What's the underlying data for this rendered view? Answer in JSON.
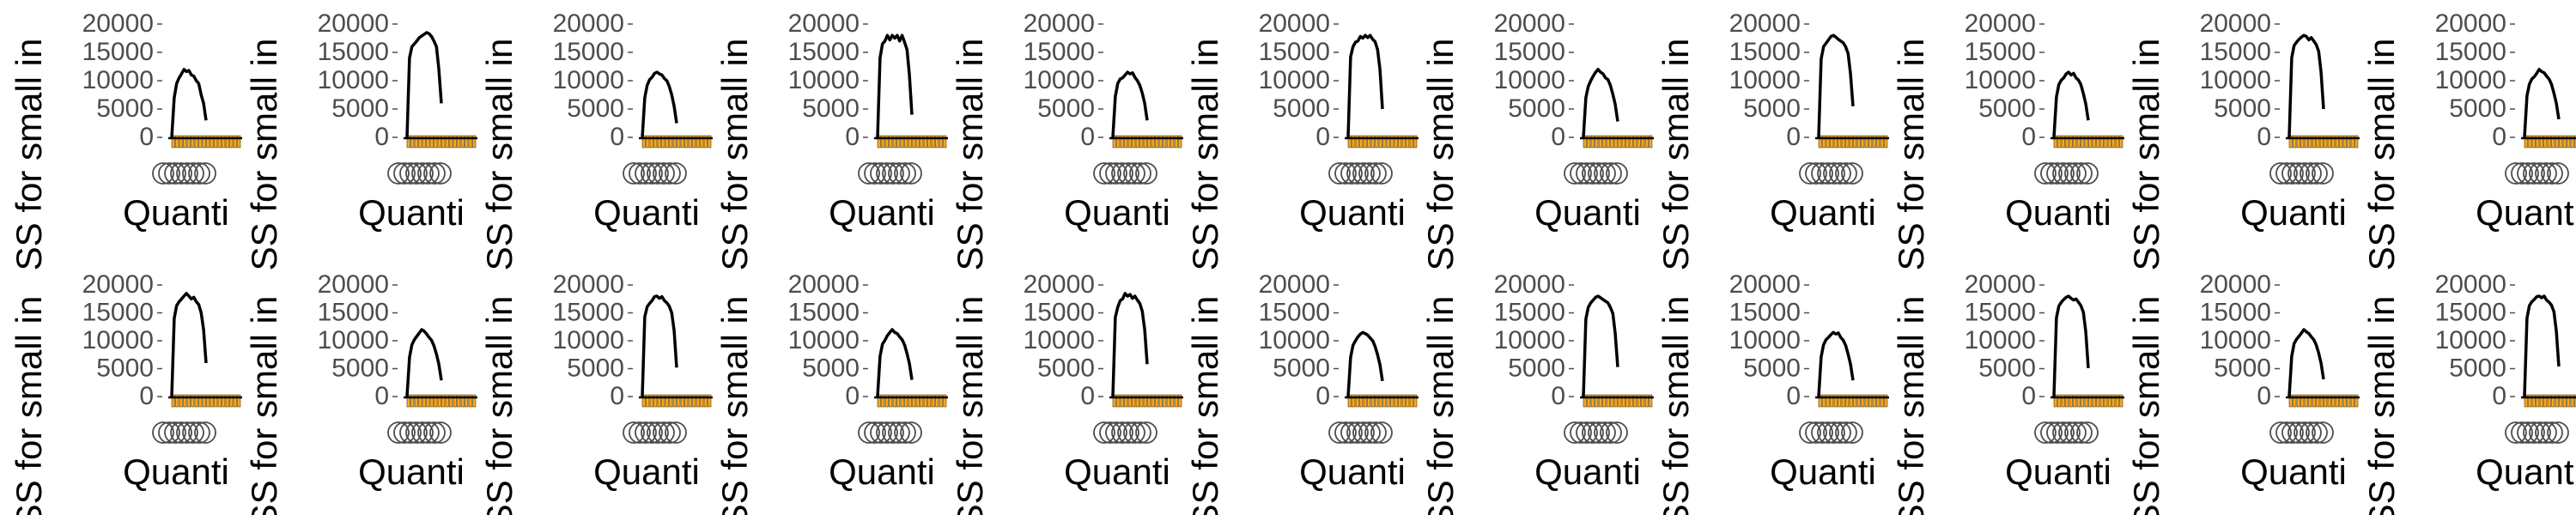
{
  "chart_data": {
    "type": "line",
    "layout": "small multiples, 2 rows x 11 columns",
    "xlabel": "Quanti",
    "ylabel": "SS for small in",
    "ylim": [
      0,
      20000
    ],
    "yticks": [
      "20000",
      "15000",
      "10000",
      "5000",
      "0"
    ],
    "xtick_labels_note": "overlapping grey tick labels, illegible",
    "grid": false,
    "legend": "none",
    "colors": {
      "line": "#000000",
      "bars": "#F5A623",
      "bar_outline": "#5a4000",
      "tick_text": "#4d4d4d",
      "label_text": "#000000"
    },
    "bar_heights_relative": [
      0.1,
      0.1,
      0.1,
      0.1,
      0.1,
      0.1,
      0.1,
      0.1,
      0.1,
      0.1,
      0.1,
      0.1,
      0.1,
      0.1,
      0.1,
      0.1,
      0.1,
      0.1
    ],
    "panels": [
      {
        "peak": 12000,
        "values": [
          0,
          7000,
          9500,
          10500,
          11200,
          12000,
          11600,
          11800,
          11000,
          10800,
          10000,
          9500,
          7500,
          6000,
          3000
        ]
      },
      {
        "peak": 18500,
        "values": [
          0,
          14000,
          16000,
          16500,
          17000,
          17600,
          17900,
          18200,
          18500,
          18300,
          17800,
          17000,
          16000,
          12000,
          6000
        ]
      },
      {
        "peak": 11500,
        "values": [
          0,
          7000,
          9200,
          10200,
          10600,
          11300,
          11500,
          11200,
          11000,
          10400,
          10000,
          9000,
          7500,
          5500,
          2500
        ]
      },
      {
        "peak": 18000,
        "values": [
          0,
          14000,
          16500,
          17000,
          18000,
          17200,
          18000,
          17500,
          18000,
          17000,
          18000,
          16800,
          15500,
          11000,
          4000
        ]
      },
      {
        "peak": 11500,
        "values": [
          0,
          7200,
          9500,
          10300,
          10500,
          11000,
          11500,
          11200,
          11400,
          10600,
          10000,
          9200,
          7800,
          6000,
          3000
        ]
      },
      {
        "peak": 18000,
        "values": [
          0,
          14200,
          16000,
          16800,
          17000,
          17800,
          17500,
          18000,
          17600,
          18000,
          17300,
          16900,
          15500,
          12000,
          5000
        ]
      },
      {
        "peak": 12000,
        "values": [
          0,
          7000,
          9000,
          10000,
          10800,
          11500,
          12000,
          11500,
          11200,
          10500,
          10200,
          9200,
          7600,
          5800,
          2800
        ]
      },
      {
        "peak": 18000,
        "values": [
          0,
          13800,
          16000,
          16600,
          17200,
          17800,
          18000,
          17700,
          17300,
          17000,
          16700,
          16000,
          14800,
          11200,
          5500
        ]
      },
      {
        "peak": 11500,
        "values": [
          0,
          7100,
          9300,
          10100,
          10500,
          11200,
          11500,
          11000,
          11300,
          10500,
          10100,
          9300,
          7700,
          5900,
          3000
        ]
      },
      {
        "peak": 18000,
        "values": [
          0,
          14000,
          16200,
          16800,
          17300,
          17700,
          18000,
          17800,
          17200,
          17600,
          17000,
          16400,
          15200,
          11500,
          5000
        ]
      },
      {
        "peak": 12000,
        "values": [
          0,
          7300,
          9400,
          10300,
          10700,
          11300,
          12000,
          11600,
          11400,
          10800,
          10300,
          9400,
          7800,
          6000,
          3200
        ]
      },
      {
        "peak": 18500,
        "values": [
          0,
          14000,
          16300,
          17000,
          17500,
          18000,
          18500,
          18000,
          17500,
          17800,
          17000,
          16500,
          15000,
          12000,
          6000
        ]
      },
      {
        "peak": 12000,
        "values": [
          0,
          7000,
          9300,
          10200,
          10800,
          11400,
          12000,
          11700,
          11200,
          10600,
          10100,
          9100,
          7600,
          5800,
          2900
        ]
      },
      {
        "peak": 18000,
        "values": [
          0,
          14300,
          16100,
          16700,
          17200,
          17900,
          18000,
          17600,
          17900,
          17200,
          16800,
          16200,
          15000,
          11800,
          5200
        ]
      },
      {
        "peak": 12000,
        "values": [
          0,
          7200,
          9400,
          10100,
          10900,
          11500,
          12000,
          11500,
          11300,
          10700,
          10200,
          9300,
          7700,
          5900,
          3000
        ]
      },
      {
        "peak": 18500,
        "values": [
          0,
          14200,
          16000,
          17200,
          17500,
          18500,
          18000,
          18300,
          17600,
          18000,
          17300,
          16700,
          15300,
          12000,
          5800
        ]
      },
      {
        "peak": 11500,
        "values": [
          0,
          7000,
          9200,
          10000,
          10700,
          11200,
          11500,
          11300,
          11000,
          10500,
          10000,
          9000,
          7500,
          5700,
          2800
        ]
      },
      {
        "peak": 18000,
        "values": [
          0,
          13900,
          16000,
          16800,
          17300,
          17800,
          18000,
          17700,
          17400,
          17100,
          16800,
          16000,
          14900,
          11300,
          5300
        ]
      },
      {
        "peak": 11500,
        "values": [
          0,
          7100,
          9300,
          10200,
          10600,
          11100,
          11500,
          11200,
          11400,
          10600,
          10100,
          9200,
          7600,
          5800,
          2900
        ]
      },
      {
        "peak": 18000,
        "values": [
          0,
          14100,
          16200,
          16900,
          17400,
          17800,
          18000,
          17600,
          17300,
          17500,
          16900,
          16300,
          15100,
          11600,
          5100
        ]
      },
      {
        "peak": 12000,
        "values": [
          0,
          7200,
          9500,
          10300,
          10800,
          11400,
          12000,
          11600,
          11300,
          10700,
          10200,
          9300,
          7800,
          6000,
          3100
        ]
      },
      {
        "peak": 18000,
        "values": [
          0,
          14000,
          16300,
          17000,
          17400,
          17900,
          18000,
          17700,
          18000,
          17300,
          16900,
          16400,
          15200,
          11700,
          5400
        ]
      }
    ]
  }
}
